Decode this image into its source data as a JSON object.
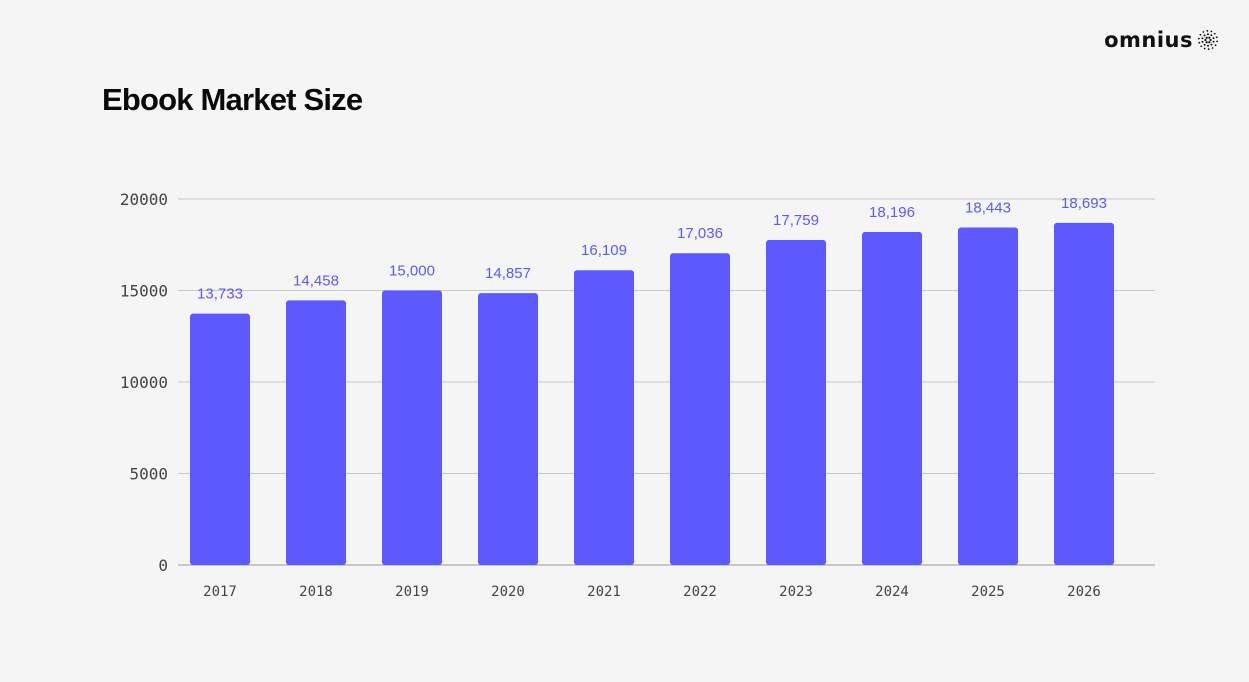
{
  "brand": {
    "name": "omnius"
  },
  "colors": {
    "bar": "#5c59ff",
    "label": "#5c59ff",
    "grid": "#c8c8c8",
    "background": "#f5f5f5"
  },
  "chart_data": {
    "type": "bar",
    "title": "Ebook Market Size",
    "xlabel": "",
    "ylabel": "",
    "categories": [
      "2017",
      "2018",
      "2019",
      "2020",
      "2021",
      "2022",
      "2023",
      "2024",
      "2025",
      "2026"
    ],
    "values": [
      13733,
      14458,
      15000,
      14857,
      16109,
      17036,
      17759,
      18196,
      18443,
      18693
    ],
    "data_labels": [
      "13,733",
      "14,458",
      "15,000",
      "14,857",
      "16,109",
      "17,036",
      "17,759",
      "18,196",
      "18,443",
      "18,693"
    ],
    "y_ticks": [
      "0",
      "5000",
      "10000",
      "15000",
      "20000"
    ],
    "ylim": [
      0,
      20000
    ],
    "grid": true,
    "legend": "none"
  }
}
